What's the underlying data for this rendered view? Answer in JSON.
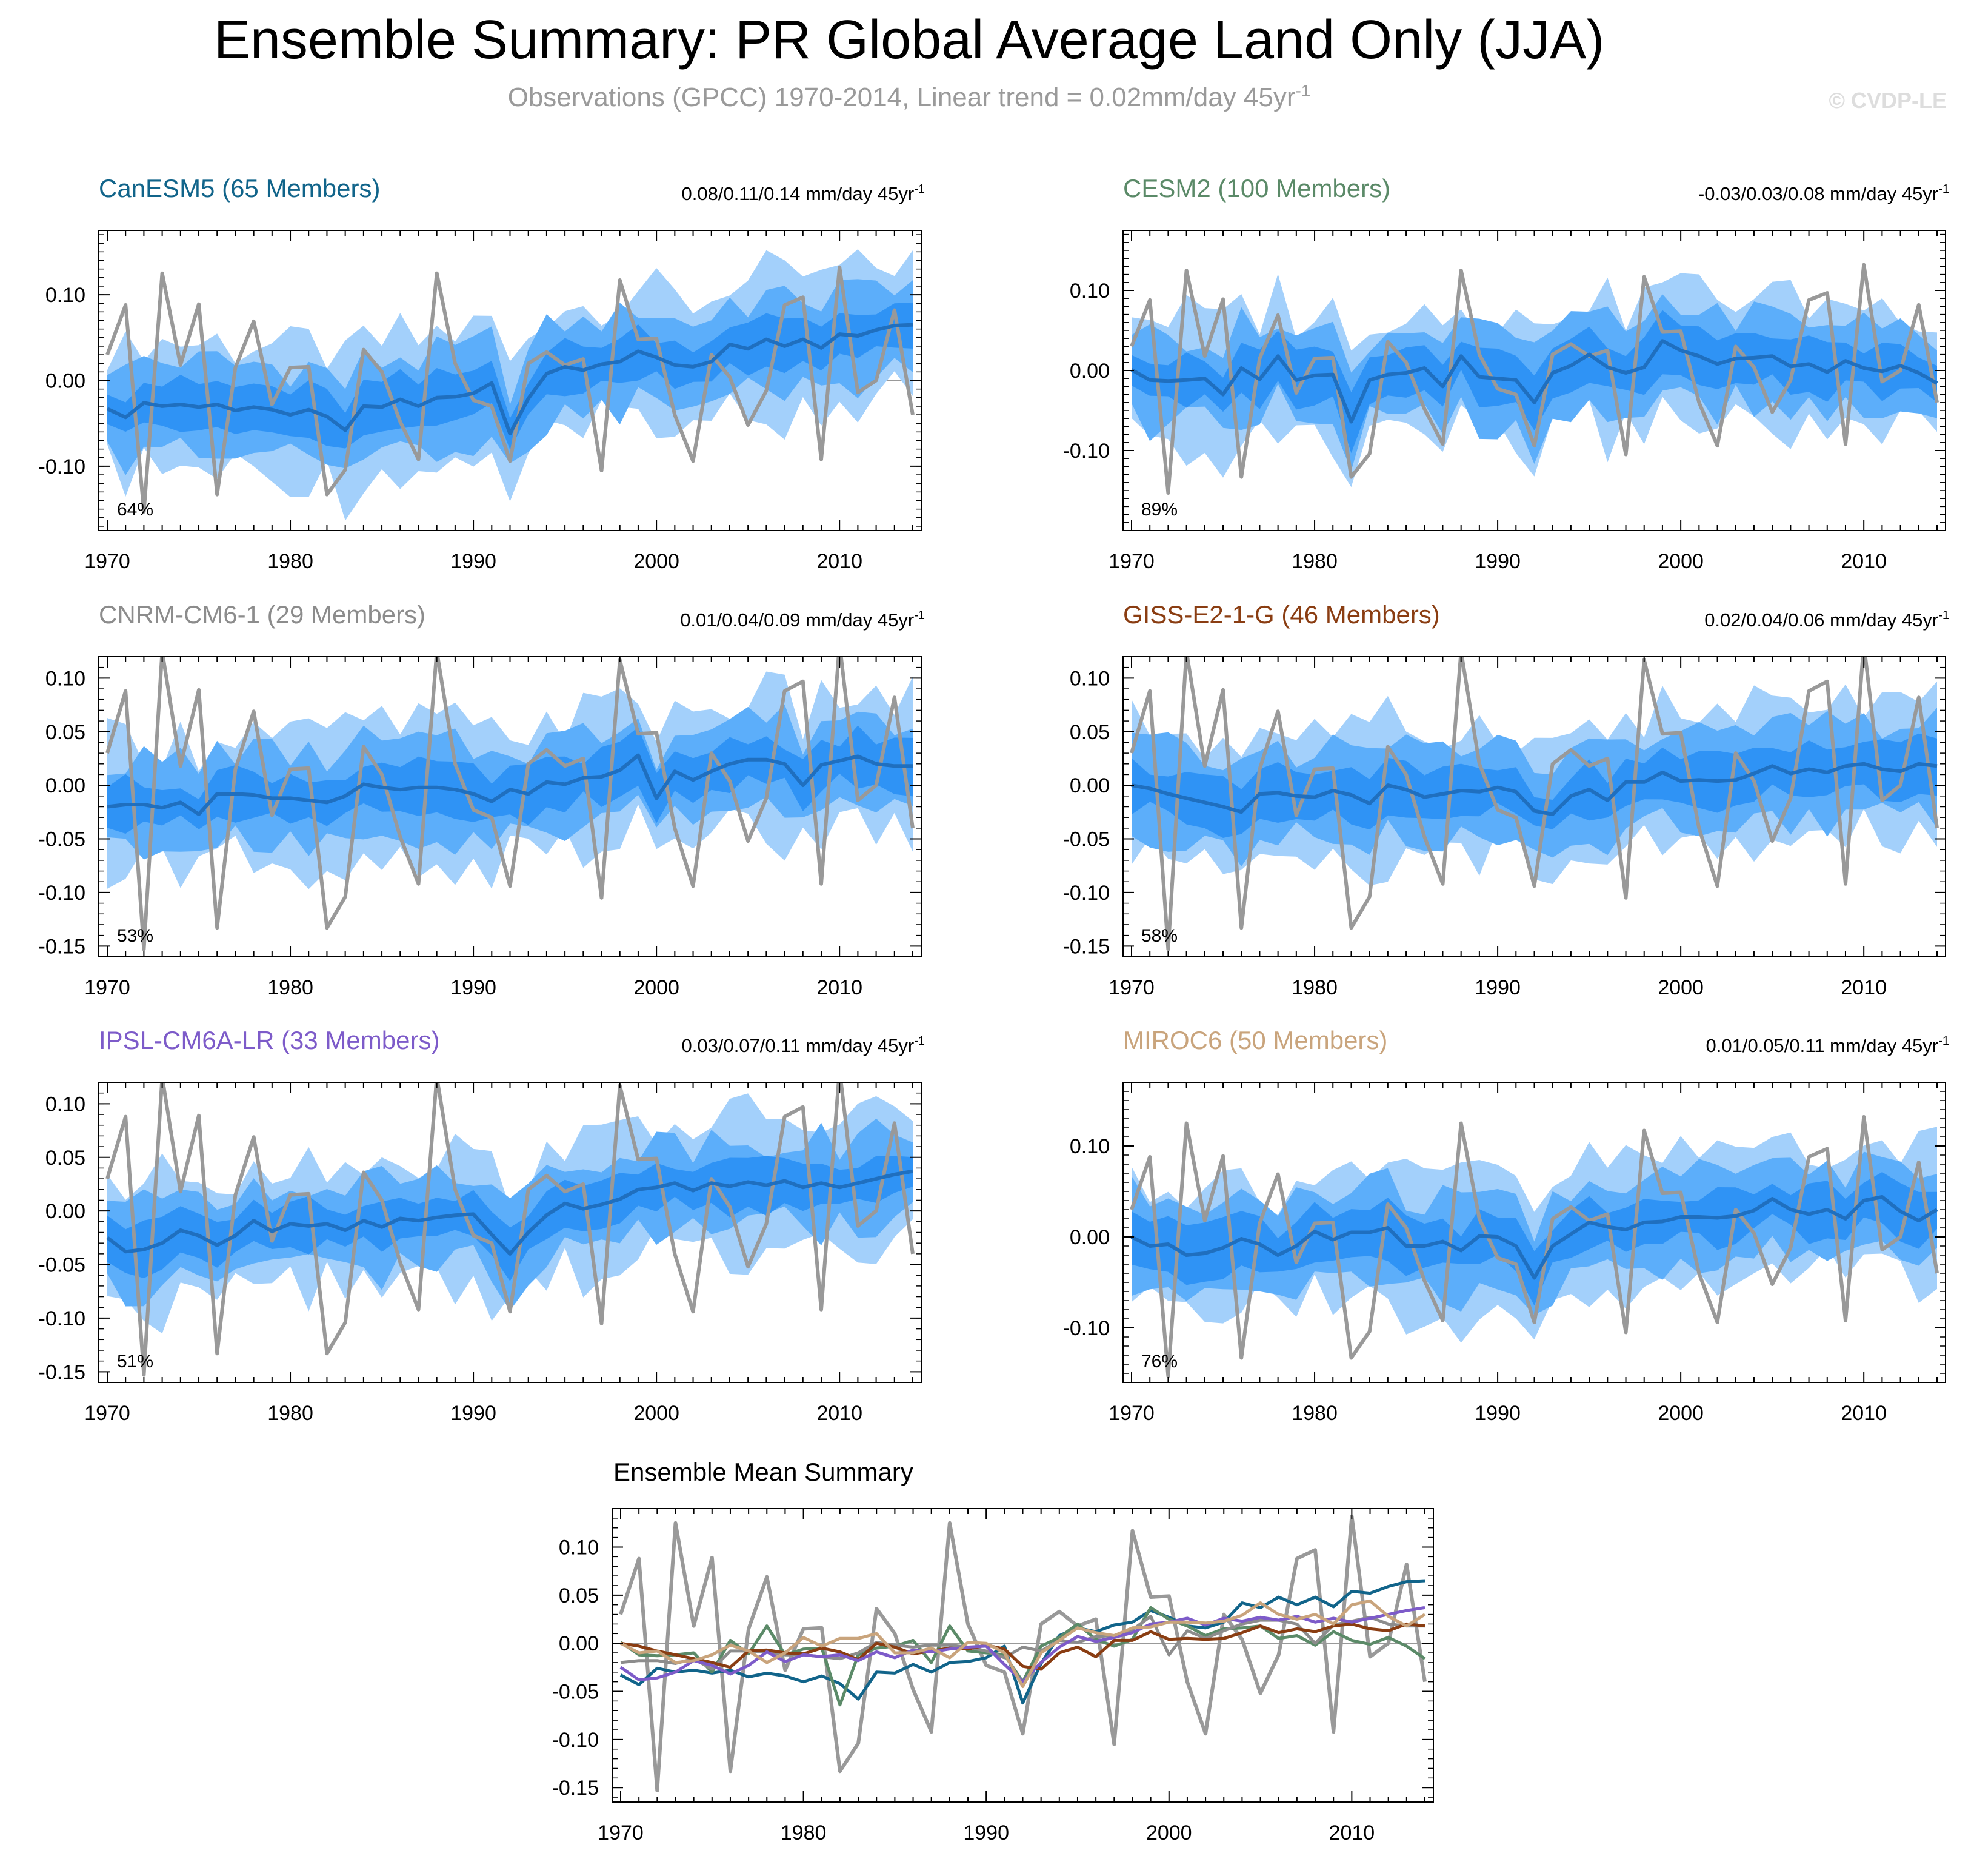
{
  "header": {
    "title": "Ensemble Summary: PR Global Average Land Only (JJA)",
    "subtitle": "Observations (GPCC) 1970-2014, Linear trend = 0.02mm/day 45yr",
    "subtitle_sup": "-1",
    "copyright": "© CVDP-LE"
  },
  "colors": {
    "band_outer": "#a3d0fb",
    "band_mid": "#5caefa",
    "band_inner": "#2f93f5",
    "mean_line": "#1f6fbf",
    "obs_line": "#999999",
    "zero_line": "#999999"
  },
  "obs_values": [
    0.03,
    0.088,
    -0.153,
    0.125,
    0.018,
    0.089,
    -0.133,
    0.015,
    0.069,
    -0.028,
    0.015,
    0.016,
    -0.133,
    -0.104,
    0.036,
    0.01,
    -0.048,
    -0.092,
    0.125,
    0.02,
    -0.023,
    -0.03,
    -0.094,
    0.02,
    0.033,
    0.018,
    0.025,
    -0.105,
    0.117,
    0.048,
    0.049,
    -0.04,
    -0.094,
    0.03,
    0.004,
    -0.052,
    -0.012,
    0.088,
    0.097,
    -0.092,
    0.132,
    -0.014,
    0.0,
    0.082,
    -0.04
  ],
  "chart_data": [
    {
      "type": "area",
      "title": "CanESM5 (65 Members)",
      "title_color": "#11648a",
      "trend_label": "0.08/0.11/0.14 mm/day 45yr",
      "trend_sup": "-1",
      "percent_label": "64%",
      "x": {
        "start": 1970,
        "end": 2014,
        "ticks": [
          "1970",
          "1980",
          "1990",
          "2000",
          "2010"
        ]
      },
      "ylim": [
        -0.175,
        0.175
      ],
      "yticks": [
        "0.10",
        "0.00",
        "-0.10"
      ],
      "series": [
        {
          "name": "CanESM5 (65 Members)",
          "values": [
            -0.033,
            -0.043,
            -0.026,
            -0.03,
            -0.028,
            -0.031,
            -0.028,
            -0.035,
            -0.031,
            -0.034,
            -0.04,
            -0.034,
            -0.042,
            -0.058,
            -0.03,
            -0.031,
            -0.022,
            -0.03,
            -0.02,
            -0.019,
            -0.015,
            -0.003,
            -0.062,
            -0.021,
            0.008,
            0.016,
            0.012,
            0.019,
            0.022,
            0.034,
            0.027,
            0.018,
            0.016,
            0.022,
            0.042,
            0.037,
            0.048,
            0.04,
            0.048,
            0.038,
            0.054,
            0.052,
            0.059,
            0.064,
            0.065
          ]
        }
      ]
    },
    {
      "type": "area",
      "title": "CESM2 (100 Members)",
      "title_color": "#5b8a68",
      "trend_label": "-0.03/0.03/0.08 mm/day 45yr",
      "trend_sup": "-1",
      "percent_label": "89%",
      "x": {
        "start": 1970,
        "end": 2014,
        "ticks": [
          "1970",
          "1980",
          "1990",
          "2000",
          "2010"
        ]
      },
      "ylim": [
        -0.2,
        0.175
      ],
      "yticks": [
        "0.10",
        "0.00",
        "-0.10"
      ],
      "series": [
        {
          "name": "CESM2 (100 Members)",
          "values": [
            0.001,
            -0.012,
            -0.013,
            -0.012,
            -0.01,
            -0.03,
            0.003,
            -0.011,
            0.018,
            -0.012,
            -0.006,
            -0.005,
            -0.064,
            -0.012,
            -0.005,
            -0.003,
            0.003,
            -0.02,
            0.018,
            -0.008,
            -0.01,
            -0.012,
            -0.04,
            -0.003,
            0.006,
            0.02,
            0.004,
            -0.003,
            0.004,
            0.037,
            0.025,
            0.018,
            0.008,
            0.015,
            0.016,
            0.018,
            0.005,
            0.008,
            -0.002,
            0.012,
            0.003,
            -0.001,
            0.006,
            -0.003,
            -0.016
          ]
        }
      ]
    },
    {
      "type": "area",
      "title": "CNRM-CM6-1 (29 Members)",
      "title_color": "#8c8c8c",
      "trend_label": "0.01/0.04/0.09 mm/day 45yr",
      "trend_sup": "-1",
      "percent_label": "53%",
      "x": {
        "start": 1970,
        "end": 2014,
        "ticks": [
          "1970",
          "1980",
          "1990",
          "2000",
          "2010"
        ]
      },
      "ylim": [
        -0.16,
        0.12
      ],
      "yticks": [
        "0.10",
        "0.05",
        "0.00",
        "-0.05",
        "-0.10",
        "-0.15"
      ],
      "series": [
        {
          "name": "CNRM-CM6-1 (29 Members)",
          "values": [
            -0.02,
            -0.018,
            -0.018,
            -0.021,
            -0.016,
            -0.027,
            -0.008,
            -0.008,
            -0.009,
            -0.012,
            -0.012,
            -0.014,
            -0.016,
            -0.01,
            0.001,
            -0.002,
            -0.004,
            -0.002,
            -0.002,
            -0.004,
            -0.008,
            -0.015,
            -0.004,
            -0.008,
            0.003,
            0.001,
            0.007,
            0.008,
            0.014,
            0.028,
            -0.012,
            0.013,
            0.005,
            0.013,
            0.02,
            0.024,
            0.024,
            0.02,
            0.0,
            0.019,
            0.023,
            0.027,
            0.02,
            0.018,
            0.018
          ]
        }
      ]
    },
    {
      "type": "area",
      "title": "GISS-E2-1-G (46 Members)",
      "title_color": "#8a3d12",
      "trend_label": "0.02/0.04/0.06 mm/day 45yr",
      "trend_sup": "-1",
      "percent_label": "58%",
      "x": {
        "start": 1970,
        "end": 2014,
        "ticks": [
          "1970",
          "1980",
          "1990",
          "2000",
          "2010"
        ]
      },
      "ylim": [
        -0.16,
        0.12
      ],
      "yticks": [
        "0.10",
        "0.05",
        "0.00",
        "-0.05",
        "-0.10",
        "-0.15"
      ],
      "series": [
        {
          "name": "GISS-E2-1-G (46 Members)",
          "values": [
            0.0,
            -0.003,
            -0.008,
            -0.012,
            -0.016,
            -0.02,
            -0.025,
            -0.008,
            -0.007,
            -0.01,
            -0.011,
            -0.005,
            -0.009,
            -0.017,
            0.0,
            -0.004,
            -0.011,
            -0.008,
            -0.005,
            -0.006,
            -0.002,
            -0.006,
            -0.024,
            -0.027,
            -0.01,
            -0.004,
            -0.014,
            0.003,
            0.003,
            0.012,
            0.004,
            0.005,
            0.004,
            0.005,
            0.011,
            0.018,
            0.011,
            0.015,
            0.012,
            0.018,
            0.02,
            0.015,
            0.013,
            0.02,
            0.018
          ]
        }
      ]
    },
    {
      "type": "area",
      "title": "IPSL-CM6A-LR (33 Members)",
      "title_color": "#7d5bc9",
      "trend_label": "0.03/0.07/0.11 mm/day 45yr",
      "trend_sup": "-1",
      "percent_label": "51%",
      "x": {
        "start": 1970,
        "end": 2014,
        "ticks": [
          "1970",
          "1980",
          "1990",
          "2000",
          "2010"
        ]
      },
      "ylim": [
        -0.16,
        0.12
      ],
      "yticks": [
        "0.10",
        "0.05",
        "0.00",
        "-0.05",
        "-0.10",
        "-0.15"
      ],
      "series": [
        {
          "name": "IPSL-CM6A-LR (33 Members)",
          "values": [
            -0.025,
            -0.038,
            -0.036,
            -0.03,
            -0.018,
            -0.023,
            -0.032,
            -0.023,
            -0.009,
            -0.019,
            -0.012,
            -0.014,
            -0.012,
            -0.018,
            -0.009,
            -0.015,
            -0.007,
            -0.009,
            -0.006,
            -0.004,
            -0.003,
            -0.022,
            -0.04,
            -0.02,
            -0.004,
            0.007,
            0.002,
            0.006,
            0.011,
            0.02,
            0.022,
            0.026,
            0.019,
            0.026,
            0.023,
            0.027,
            0.024,
            0.028,
            0.022,
            0.026,
            0.022,
            0.026,
            0.03,
            0.034,
            0.037
          ]
        }
      ]
    },
    {
      "type": "area",
      "title": "MIROC6 (50 Members)",
      "title_color": "#c9a47c",
      "trend_label": "0.01/0.05/0.11 mm/day 45yr",
      "trend_sup": "-1",
      "percent_label": "76%",
      "x": {
        "start": 1970,
        "end": 2014,
        "ticks": [
          "1970",
          "1980",
          "1990",
          "2000",
          "2010"
        ]
      },
      "ylim": [
        -0.16,
        0.17
      ],
      "yticks": [
        "0.10",
        "0.00",
        "-0.10"
      ],
      "series": [
        {
          "name": "MIROC6 (50 Members)",
          "values": [
            0.0,
            -0.01,
            -0.008,
            -0.02,
            -0.018,
            -0.012,
            -0.002,
            -0.008,
            -0.02,
            -0.01,
            0.006,
            -0.003,
            0.005,
            0.005,
            0.01,
            -0.01,
            -0.01,
            -0.005,
            -0.015,
            0.001,
            0.0,
            -0.01,
            -0.045,
            -0.01,
            0.003,
            0.016,
            0.011,
            0.008,
            0.016,
            0.017,
            0.022,
            0.022,
            0.021,
            0.023,
            0.029,
            0.042,
            0.03,
            0.025,
            0.03,
            0.02,
            0.04,
            0.044,
            0.028,
            0.018,
            0.03
          ]
        }
      ]
    },
    {
      "type": "line",
      "title": "Ensemble Mean Summary",
      "x": {
        "start": 1970,
        "end": 2014,
        "ticks": [
          "1970",
          "1980",
          "1990",
          "2000",
          "2010"
        ]
      },
      "ylim": [
        -0.165,
        0.14
      ],
      "yticks": [
        "0.10",
        "0.05",
        "0.00",
        "-0.05",
        "-0.10",
        "-0.15"
      ],
      "series": [
        {
          "color": "#999999",
          "values": "obs"
        },
        {
          "color": "#11648a",
          "values": [
            -0.033,
            -0.043,
            -0.026,
            -0.03,
            -0.028,
            -0.031,
            -0.028,
            -0.035,
            -0.031,
            -0.034,
            -0.04,
            -0.034,
            -0.042,
            -0.058,
            -0.03,
            -0.031,
            -0.022,
            -0.03,
            -0.02,
            -0.019,
            -0.015,
            -0.003,
            -0.062,
            -0.021,
            0.008,
            0.016,
            0.012,
            0.019,
            0.022,
            0.034,
            0.027,
            0.018,
            0.016,
            0.022,
            0.042,
            0.037,
            0.048,
            0.04,
            0.048,
            0.038,
            0.054,
            0.052,
            0.059,
            0.064,
            0.065
          ]
        },
        {
          "color": "#5b8a68",
          "values": [
            0.001,
            -0.012,
            -0.013,
            -0.012,
            -0.01,
            -0.03,
            0.003,
            -0.011,
            0.018,
            -0.012,
            -0.006,
            -0.005,
            -0.064,
            -0.012,
            -0.005,
            -0.003,
            0.003,
            -0.02,
            0.018,
            -0.008,
            -0.01,
            -0.012,
            -0.04,
            -0.003,
            0.006,
            0.02,
            0.004,
            -0.003,
            0.004,
            0.037,
            0.025,
            0.018,
            0.008,
            0.015,
            0.016,
            0.018,
            0.005,
            0.008,
            -0.002,
            0.012,
            0.003,
            -0.001,
            0.006,
            -0.003,
            -0.016
          ]
        },
        {
          "color": "#8c8c8c",
          "values": [
            -0.02,
            -0.018,
            -0.018,
            -0.021,
            -0.016,
            -0.027,
            -0.008,
            -0.008,
            -0.009,
            -0.012,
            -0.012,
            -0.014,
            -0.016,
            -0.01,
            0.001,
            -0.002,
            -0.004,
            -0.002,
            -0.002,
            -0.004,
            -0.008,
            -0.015,
            -0.004,
            -0.008,
            0.003,
            0.001,
            0.007,
            0.008,
            0.014,
            0.028,
            -0.012,
            0.013,
            0.005,
            0.013,
            0.02,
            0.024,
            0.024,
            0.02,
            0.0,
            0.019,
            0.023,
            0.027,
            0.02,
            0.018,
            0.018
          ]
        },
        {
          "color": "#8a3d12",
          "values": [
            0.0,
            -0.003,
            -0.008,
            -0.012,
            -0.016,
            -0.02,
            -0.025,
            -0.008,
            -0.007,
            -0.01,
            -0.011,
            -0.005,
            -0.009,
            -0.017,
            0.0,
            -0.004,
            -0.011,
            -0.008,
            -0.005,
            -0.006,
            -0.002,
            -0.006,
            -0.024,
            -0.027,
            -0.01,
            -0.004,
            -0.014,
            0.003,
            0.003,
            0.012,
            0.004,
            0.005,
            0.004,
            0.005,
            0.011,
            0.018,
            0.011,
            0.015,
            0.012,
            0.018,
            0.02,
            0.015,
            0.013,
            0.02,
            0.018
          ]
        },
        {
          "color": "#7d5bc9",
          "values": [
            -0.025,
            -0.038,
            -0.036,
            -0.03,
            -0.018,
            -0.023,
            -0.032,
            -0.023,
            -0.009,
            -0.019,
            -0.012,
            -0.014,
            -0.012,
            -0.018,
            -0.009,
            -0.015,
            -0.007,
            -0.009,
            -0.006,
            -0.004,
            -0.003,
            -0.022,
            -0.04,
            -0.02,
            -0.004,
            0.007,
            0.002,
            0.006,
            0.011,
            0.02,
            0.022,
            0.026,
            0.019,
            0.026,
            0.023,
            0.027,
            0.024,
            0.028,
            0.022,
            0.026,
            0.022,
            0.026,
            0.03,
            0.034,
            0.037
          ]
        },
        {
          "color": "#c9a47c",
          "values": [
            0.0,
            -0.01,
            -0.008,
            -0.02,
            -0.018,
            -0.012,
            -0.002,
            -0.008,
            -0.02,
            -0.01,
            0.006,
            -0.003,
            0.005,
            0.005,
            0.01,
            -0.01,
            -0.01,
            -0.005,
            -0.015,
            0.001,
            0.0,
            -0.01,
            -0.045,
            -0.01,
            0.003,
            0.016,
            0.011,
            0.008,
            0.016,
            0.017,
            0.022,
            0.022,
            0.021,
            0.023,
            0.029,
            0.042,
            0.03,
            0.025,
            0.03,
            0.02,
            0.04,
            0.044,
            0.028,
            0.018,
            0.03
          ]
        }
      ]
    }
  ]
}
